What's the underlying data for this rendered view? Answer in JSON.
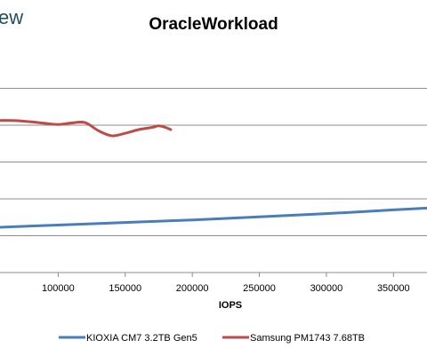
{
  "logo": {
    "text": "ew"
  },
  "chart_data": {
    "type": "line",
    "title": "OracleWorkload",
    "xlabel": "IOPS",
    "ylabel": "",
    "xlim": [
      50000,
      375000
    ],
    "ylim": [
      0,
      6
    ],
    "x_ticks": [
      100000,
      150000,
      200000,
      250000,
      300000,
      350000
    ],
    "x_tick_labels": [
      "100000",
      "150000",
      "200000",
      "250000",
      "300000",
      "350000"
    ],
    "y_gridlines": [
      1,
      2,
      3,
      4,
      5
    ],
    "grid": true,
    "legend_position": "bottom",
    "series": [
      {
        "name": "KIOXIA CM7 3.2TB Gen5",
        "color": "#4a7ebb",
        "x": [
          50000,
          100000,
          150000,
          200000,
          250000,
          300000,
          350000,
          375000
        ],
        "y": [
          1.22,
          1.29,
          1.36,
          1.43,
          1.51,
          1.6,
          1.7,
          1.75
        ]
      },
      {
        "name": "Samsung PM1743 7.68TB",
        "color": "#be4b48",
        "x": [
          50000,
          60000,
          70000,
          80000,
          90000,
          100000,
          110000,
          120000,
          130000,
          140000,
          150000,
          160000,
          170000,
          175000,
          180000,
          184000
        ],
        "y": [
          4.12,
          4.13,
          4.12,
          4.09,
          4.05,
          4.02,
          4.06,
          4.07,
          3.85,
          3.71,
          3.78,
          3.88,
          3.94,
          3.98,
          3.94,
          3.88
        ]
      }
    ]
  }
}
